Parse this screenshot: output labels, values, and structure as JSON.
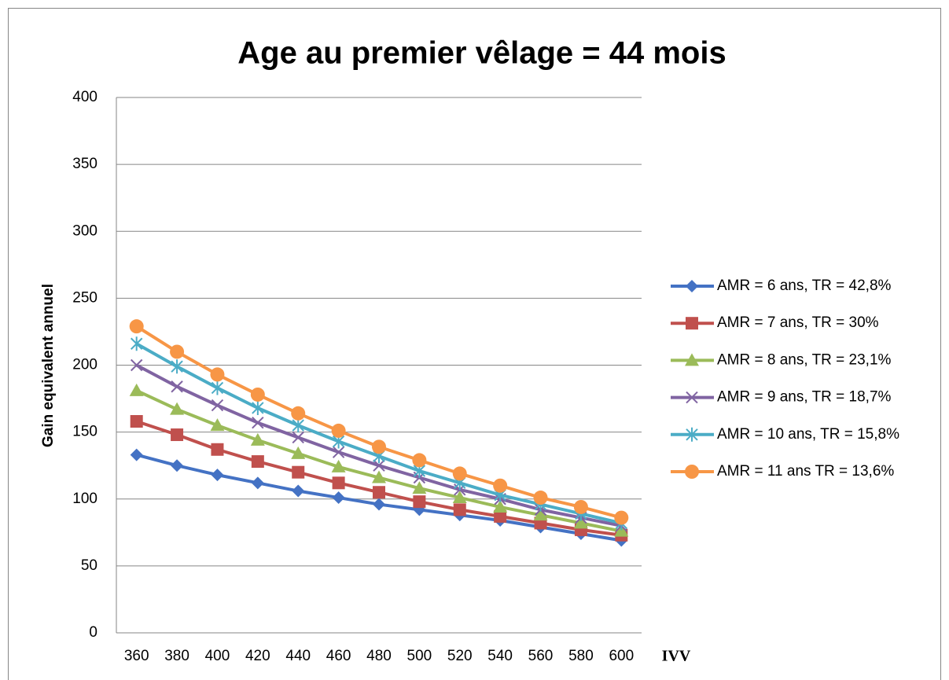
{
  "chart_data": {
    "type": "line",
    "title": "Age au premier vêlage = 44 mois",
    "y_label": "Gain equivalent annuel",
    "x_label": "IVV",
    "categories": [
      360,
      380,
      400,
      420,
      440,
      460,
      480,
      500,
      520,
      540,
      560,
      580,
      600
    ],
    "ylim": [
      0,
      400
    ],
    "yticks": [
      0,
      50,
      100,
      150,
      200,
      250,
      300,
      350,
      400
    ],
    "grid": true,
    "legend": "right",
    "series": [
      {
        "name": "AMR = 6 ans, TR = 42,8%",
        "color": "#4472c4",
        "marker": "diamond",
        "values": [
          133,
          125,
          118,
          112,
          106,
          101,
          96,
          92,
          88,
          84,
          79,
          74,
          69
        ]
      },
      {
        "name": "AMR = 7 ans, TR = 30%",
        "color": "#c0504d",
        "marker": "square",
        "values": [
          158,
          148,
          137,
          128,
          120,
          112,
          105,
          98,
          92,
          87,
          82,
          77,
          73
        ]
      },
      {
        "name": "AMR = 8 ans, TR = 23,1%",
        "color": "#9bbb59",
        "marker": "triangle",
        "values": [
          181,
          167,
          155,
          144,
          134,
          124,
          116,
          108,
          101,
          94,
          88,
          82,
          76
        ]
      },
      {
        "name": "AMR = 9 ans, TR = 18,7%",
        "color": "#8064a2",
        "marker": "x",
        "values": [
          200,
          184,
          170,
          157,
          146,
          135,
          125,
          116,
          107,
          100,
          92,
          86,
          80
        ]
      },
      {
        "name": "AMR = 10 ans, TR = 15,8%",
        "color": "#4bacc6",
        "marker": "star",
        "values": [
          216,
          199,
          183,
          168,
          155,
          143,
          132,
          121,
          112,
          103,
          96,
          89,
          82
        ]
      },
      {
        "name": "AMR = 11 ans TR = 13,6%",
        "color": "#f79646",
        "marker": "circle",
        "values": [
          229,
          210,
          193,
          178,
          164,
          151,
          139,
          129,
          119,
          110,
          101,
          94,
          86
        ]
      }
    ]
  }
}
